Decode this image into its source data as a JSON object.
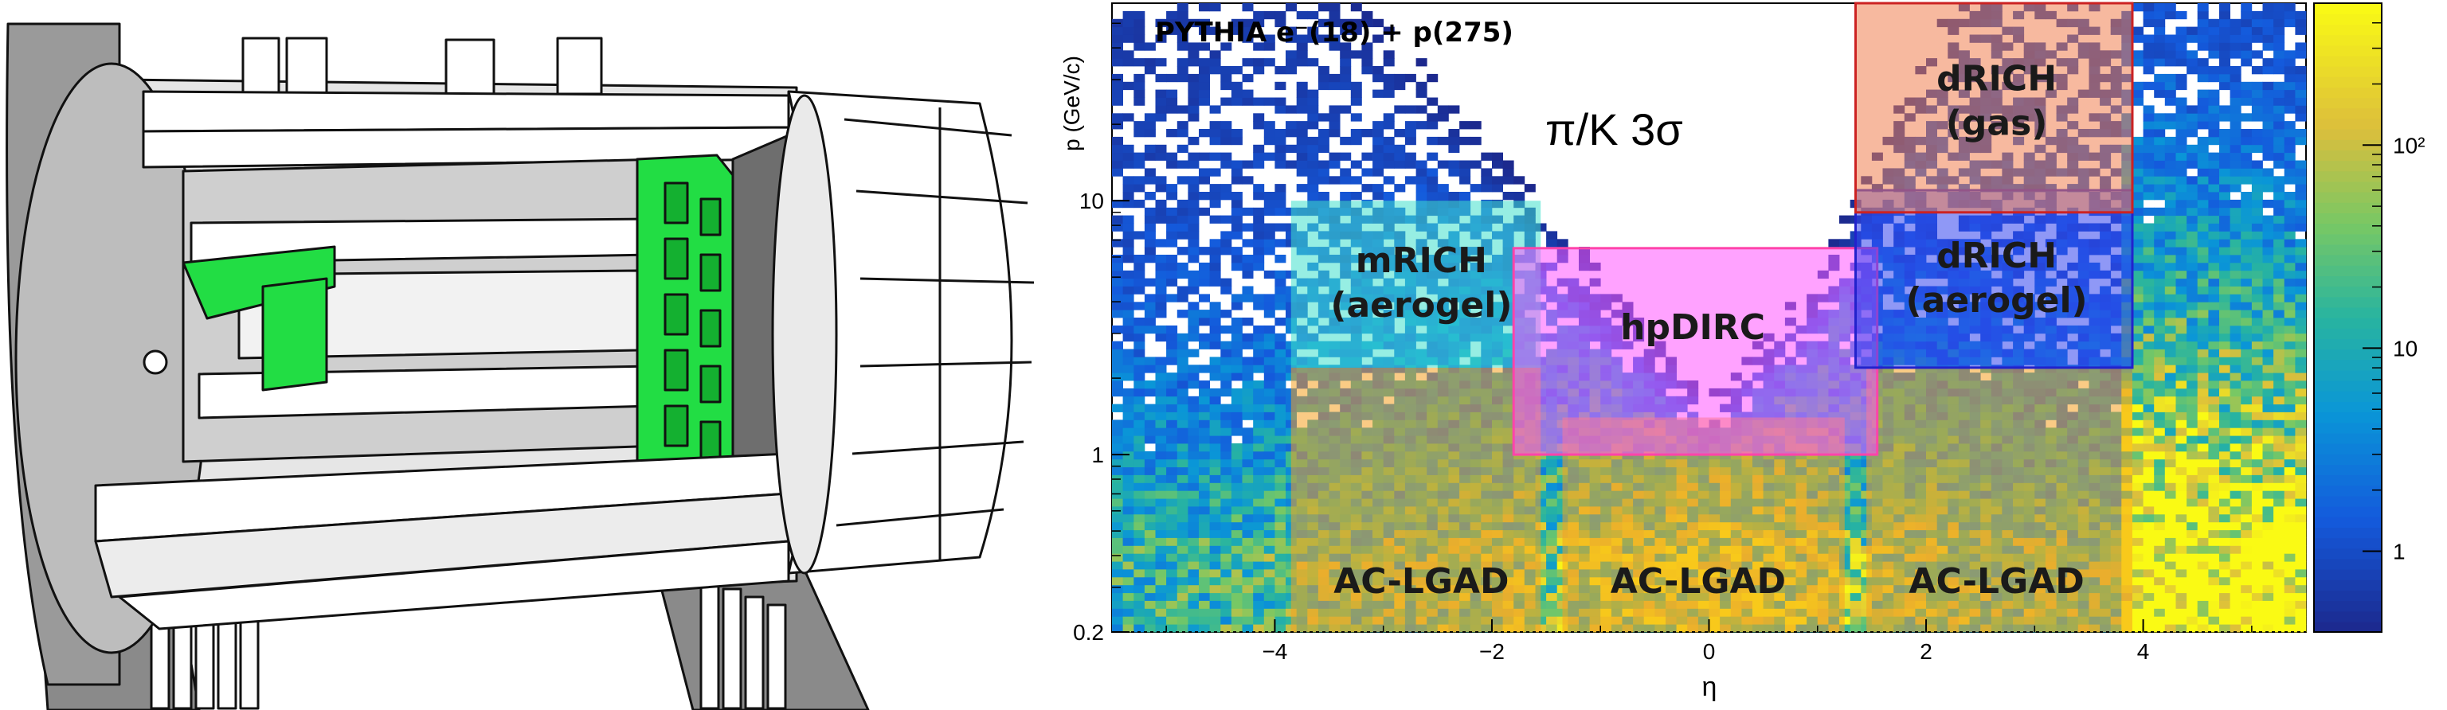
{
  "detector": {
    "figure": "detector-cutaway",
    "colors": {
      "highlight": "#22dd44",
      "body": "#ffffff",
      "outline": "#111111",
      "shade": "#bdbdbd",
      "dark": "#7a7a7a"
    }
  },
  "chart_data": {
    "type": "heatmap",
    "title": "PYTHIA e⁻(18) + p(275)",
    "xlabel": "η",
    "ylabel": "p (GeV/c)",
    "xlim": [
      -5.5,
      5.5
    ],
    "ylim": [
      0.2,
      60
    ],
    "y_scale": "log",
    "x_ticks": [
      -4,
      -2,
      0,
      2,
      4
    ],
    "x_tick_labels": [
      "−4",
      "−2",
      "0",
      "2",
      "4"
    ],
    "y_ticks": [
      0.2,
      1,
      10
    ],
    "y_tick_labels": [
      "0.2",
      "1",
      "10"
    ],
    "colorbar": {
      "scale": "log",
      "range": [
        0.4,
        500
      ],
      "ticks": [
        1,
        10,
        100
      ],
      "tick_labels": [
        "1",
        "10",
        "10²"
      ]
    },
    "annotation": "π/K 3σ",
    "regions": [
      {
        "name": "AC-LGAD",
        "eta": [
          -3.85,
          -1.55
        ],
        "p": [
          0.2,
          2.2
        ],
        "color": "#f5a020"
      },
      {
        "name": "AC-LGAD",
        "eta": [
          -1.35,
          1.25
        ],
        "p": [
          0.2,
          1.4
        ],
        "color": "#f5a020"
      },
      {
        "name": "AC-LGAD",
        "eta": [
          1.45,
          3.9
        ],
        "p": [
          0.2,
          2.2
        ],
        "color": "#f5a020"
      },
      {
        "name": "mRICH\n(aerogel)",
        "eta": [
          -3.85,
          -1.55
        ],
        "p": [
          2.2,
          10
        ],
        "color": "#40e0cc"
      },
      {
        "name": "hpDIRC",
        "eta": [
          -1.8,
          1.55
        ],
        "p": [
          1.0,
          6.5
        ],
        "color": "#ff55ff"
      },
      {
        "name": "dRICH\n(aerogel)",
        "eta": [
          1.35,
          3.9
        ],
        "p": [
          2.2,
          11
        ],
        "color": "#3344ee"
      },
      {
        "name": "dRICH\n(gas)",
        "eta": [
          1.35,
          3.9
        ],
        "p": [
          9.0,
          60
        ],
        "color": "#f08050"
      }
    ],
    "region_labels": [
      {
        "lines": [
          "AC-LGAD"
        ],
        "eta": -2.65,
        "p": 0.32
      },
      {
        "lines": [
          "AC-LGAD"
        ],
        "eta": -0.1,
        "p": 0.32
      },
      {
        "lines": [
          "AC-LGAD"
        ],
        "eta": 2.65,
        "p": 0.32
      },
      {
        "lines": [
          "mRICH",
          "(aerogel)"
        ],
        "eta": -2.65,
        "p": 4.8
      },
      {
        "lines": [
          "hpDIRC"
        ],
        "eta": -0.15,
        "p": 3.2
      },
      {
        "lines": [
          "dRICH",
          "(aerogel)"
        ],
        "eta": 2.65,
        "p": 5.0
      },
      {
        "lines": [
          "dRICH",
          "(gas)"
        ],
        "eta": 2.65,
        "p": 25
      }
    ]
  }
}
